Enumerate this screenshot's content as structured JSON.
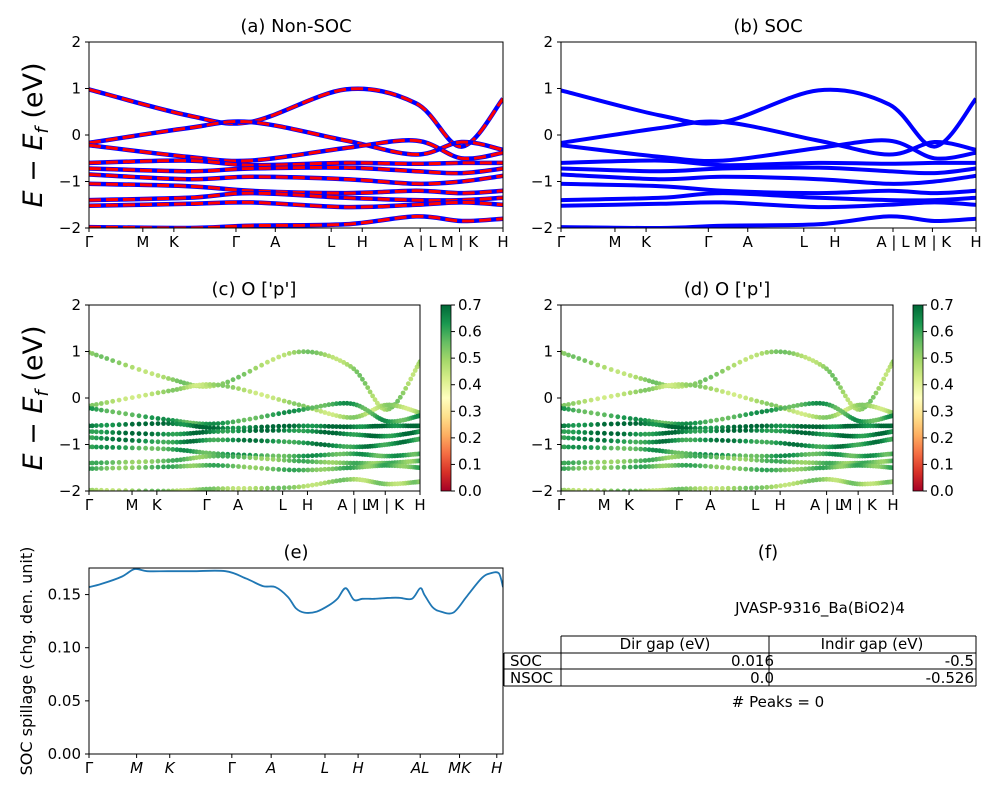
{
  "chart_data": [
    {
      "panel": "a",
      "type": "line",
      "title": "(a) Non-SOC",
      "ylabel": "E − E_f (eV)",
      "ylim": [
        -2,
        2
      ],
      "yticks": [
        "2",
        "1",
        "0",
        "−1",
        "−2"
      ],
      "kpoint_labels": [
        "Γ",
        "M",
        "K",
        "Γ",
        "A",
        "L",
        "H",
        "A | L",
        "M | K",
        "H"
      ],
      "legend": "none",
      "grid": false,
      "series_colors": [
        "#ff0000",
        "#0000ff"
      ],
      "bands": [
        {
          "x": [
            0.0,
            0.24,
            0.39,
            0.62,
            0.79,
            0.9,
            1.0
          ],
          "y": [
            0.98,
            0.42,
            0.28,
            0.98,
            0.68,
            -0.25,
            0.78
          ]
        },
        {
          "x": [
            0.0,
            0.24,
            0.39,
            0.62,
            0.79,
            0.9,
            1.0
          ],
          "y": [
            -0.17,
            0.15,
            0.28,
            -0.12,
            -0.42,
            -0.15,
            -0.32
          ]
        },
        {
          "x": [
            0.0,
            0.24,
            0.39,
            0.62,
            0.79,
            0.9,
            1.0
          ],
          "y": [
            -0.22,
            -0.47,
            -0.55,
            -0.28,
            -0.12,
            -0.5,
            -0.38
          ]
        },
        {
          "x": [
            0.0,
            0.24,
            0.39,
            0.62,
            0.79,
            0.9,
            1.0
          ],
          "y": [
            -0.6,
            -0.55,
            -0.65,
            -0.6,
            -0.62,
            -0.6,
            -0.6
          ]
        },
        {
          "x": [
            0.0,
            0.24,
            0.39,
            0.62,
            0.79,
            0.9,
            1.0
          ],
          "y": [
            -0.72,
            -0.78,
            -0.72,
            -0.7,
            -0.78,
            -0.82,
            -0.72
          ]
        },
        {
          "x": [
            0.0,
            0.24,
            0.39,
            0.62,
            0.79,
            0.9,
            1.0
          ],
          "y": [
            -0.85,
            -0.95,
            -0.9,
            -0.95,
            -1.05,
            -1.0,
            -0.88
          ]
        },
        {
          "x": [
            0.0,
            0.24,
            0.39,
            0.62,
            0.79,
            0.9,
            1.0
          ],
          "y": [
            -1.05,
            -1.1,
            -1.2,
            -1.25,
            -1.2,
            -1.25,
            -1.2
          ]
        },
        {
          "x": [
            0.0,
            0.24,
            0.39,
            0.62,
            0.79,
            0.9,
            1.0
          ],
          "y": [
            -1.4,
            -1.35,
            -1.25,
            -1.35,
            -1.4,
            -1.4,
            -1.35
          ]
        },
        {
          "x": [
            0.0,
            0.24,
            0.39,
            0.62,
            0.79,
            0.9,
            1.0
          ],
          "y": [
            -1.52,
            -1.48,
            -1.45,
            -1.55,
            -1.5,
            -1.45,
            -1.5
          ]
        },
        {
          "x": [
            0.0,
            0.24,
            0.39,
            0.62,
            0.79,
            0.9,
            1.0
          ],
          "y": [
            -1.98,
            -2.0,
            -1.95,
            -1.92,
            -1.75,
            -1.85,
            -1.8
          ]
        }
      ]
    },
    {
      "panel": "b",
      "type": "line",
      "title": "(b) SOC",
      "ylim": [
        -2,
        2
      ],
      "yticks": [
        "2",
        "1",
        "0",
        "−1",
        "−2"
      ],
      "kpoint_labels": [
        "Γ",
        "M",
        "K",
        "Γ",
        "A",
        "L",
        "H",
        "A | L",
        "M | K",
        "H"
      ],
      "series_colors": [
        "#0000ff"
      ],
      "bands": [
        {
          "x": [
            0.0,
            0.24,
            0.39,
            0.62,
            0.79,
            0.9,
            1.0
          ],
          "y": [
            0.96,
            0.42,
            0.28,
            0.96,
            0.66,
            -0.25,
            0.78
          ]
        },
        {
          "x": [
            0.0,
            0.24,
            0.39,
            0.62,
            0.79,
            0.9,
            1.0
          ],
          "y": [
            -0.17,
            0.15,
            0.28,
            -0.12,
            -0.42,
            -0.15,
            -0.32
          ]
        },
        {
          "x": [
            0.0,
            0.24,
            0.39,
            0.62,
            0.79,
            0.9,
            1.0
          ],
          "y": [
            -0.22,
            -0.47,
            -0.55,
            -0.28,
            -0.12,
            -0.5,
            -0.38
          ]
        },
        {
          "x": [
            0.0,
            0.24,
            0.39,
            0.62,
            0.79,
            0.9,
            1.0
          ],
          "y": [
            -0.6,
            -0.55,
            -0.65,
            -0.6,
            -0.62,
            -0.6,
            -0.6
          ]
        },
        {
          "x": [
            0.0,
            0.24,
            0.39,
            0.62,
            0.79,
            0.9,
            1.0
          ],
          "y": [
            -0.72,
            -0.78,
            -0.72,
            -0.7,
            -0.78,
            -0.82,
            -0.72
          ]
        },
        {
          "x": [
            0.0,
            0.24,
            0.39,
            0.62,
            0.79,
            0.9,
            1.0
          ],
          "y": [
            -0.85,
            -0.95,
            -0.9,
            -0.95,
            -1.05,
            -1.0,
            -0.88
          ]
        },
        {
          "x": [
            0.0,
            0.24,
            0.39,
            0.62,
            0.79,
            0.9,
            1.0
          ],
          "y": [
            -1.05,
            -1.1,
            -1.2,
            -1.25,
            -1.2,
            -1.25,
            -1.2
          ]
        },
        {
          "x": [
            0.0,
            0.24,
            0.39,
            0.62,
            0.79,
            0.9,
            1.0
          ],
          "y": [
            -1.4,
            -1.35,
            -1.25,
            -1.35,
            -1.4,
            -1.4,
            -1.35
          ]
        },
        {
          "x": [
            0.0,
            0.24,
            0.39,
            0.62,
            0.79,
            0.9,
            1.0
          ],
          "y": [
            -1.52,
            -1.48,
            -1.45,
            -1.55,
            -1.5,
            -1.45,
            -1.5
          ]
        },
        {
          "x": [
            0.0,
            0.24,
            0.39,
            0.62,
            0.79,
            0.9,
            1.0
          ],
          "y": [
            -1.98,
            -2.0,
            -1.95,
            -1.92,
            -1.75,
            -1.85,
            -1.8
          ]
        }
      ]
    },
    {
      "panel": "c",
      "type": "scatter",
      "title": "(c)  O ['p']",
      "ylabel": "E − E_f (eV)",
      "ylim": [
        -2,
        2
      ],
      "yticks": [
        "2",
        "1",
        "0",
        "−1",
        "−2"
      ],
      "kpoint_labels": [
        "Γ",
        "M",
        "K",
        "Γ",
        "A",
        "L",
        "H",
        "A | L",
        "M | K",
        "H"
      ],
      "colorbar": {
        "colormap": "RdYlGn",
        "min": 0.0,
        "max": 0.7,
        "ticks": [
          "0.7",
          "0.6",
          "0.5",
          "0.4",
          "0.3",
          "0.2",
          "0.1",
          "0.0"
        ]
      },
      "band_weights": [
        0.5,
        0.48,
        0.6,
        0.68,
        0.66,
        0.64,
        0.6,
        0.55,
        0.56,
        0.5
      ]
    },
    {
      "panel": "d",
      "type": "scatter",
      "title": "(d) O ['p']",
      "ylim": [
        -2,
        2
      ],
      "yticks": [
        "2",
        "1",
        "0",
        "−1",
        "−2"
      ],
      "kpoint_labels": [
        "Γ",
        "M",
        "K",
        "Γ",
        "A",
        "L",
        "H",
        "A | L",
        "M | K",
        "H"
      ],
      "colorbar": {
        "colormap": "RdYlGn",
        "min": 0.0,
        "max": 0.7,
        "ticks": [
          "0.7",
          "0.6",
          "0.5",
          "0.4",
          "0.3",
          "0.2",
          "0.1",
          "0.0"
        ]
      },
      "band_weights": [
        0.5,
        0.48,
        0.6,
        0.68,
        0.66,
        0.64,
        0.6,
        0.55,
        0.56,
        0.5
      ]
    },
    {
      "panel": "e",
      "type": "line",
      "title": "(e)",
      "ylabel": "SOC spillage (chg. den. unit)",
      "ylim": [
        0.0,
        0.175
      ],
      "yticks": [
        "0.15",
        "0.10",
        "0.05",
        "0.00"
      ],
      "kpoint_labels": [
        "Γ",
        "M",
        "K",
        "Γ",
        "A",
        "L",
        "H",
        "AL",
        "MK",
        "H"
      ],
      "line_color": "#1f77b4",
      "x": [
        0.0,
        0.03,
        0.08,
        0.11,
        0.14,
        0.19,
        0.25,
        0.33,
        0.38,
        0.42,
        0.45,
        0.48,
        0.5,
        0.52,
        0.55,
        0.58,
        0.6,
        0.62,
        0.64,
        0.66,
        0.68,
        0.69,
        0.73,
        0.75,
        0.78,
        0.8,
        0.81,
        0.83,
        0.85,
        0.88,
        0.91,
        0.92,
        0.95,
        0.97,
        0.99,
        1.0
      ],
      "y": [
        0.157,
        0.16,
        0.167,
        0.174,
        0.172,
        0.172,
        0.172,
        0.172,
        0.165,
        0.158,
        0.157,
        0.148,
        0.137,
        0.133,
        0.134,
        0.14,
        0.146,
        0.156,
        0.145,
        0.146,
        0.146,
        0.146,
        0.147,
        0.147,
        0.146,
        0.156,
        0.15,
        0.138,
        0.134,
        0.133,
        0.147,
        0.152,
        0.166,
        0.17,
        0.17,
        0.157
      ]
    }
  ],
  "panel_f": {
    "title": "(f)",
    "material": "JVASP-9316_Ba(BiO2)4",
    "table": {
      "headers": [
        "Dir gap (eV)",
        "Indir gap (eV)"
      ],
      "rows": [
        {
          "label": "SOC",
          "dir": "0.016",
          "indir": "-0.5"
        },
        {
          "label": "NSOC",
          "dir": "0.0",
          "indir": "-0.526"
        }
      ]
    },
    "peaks": "# Peaks = 0"
  }
}
